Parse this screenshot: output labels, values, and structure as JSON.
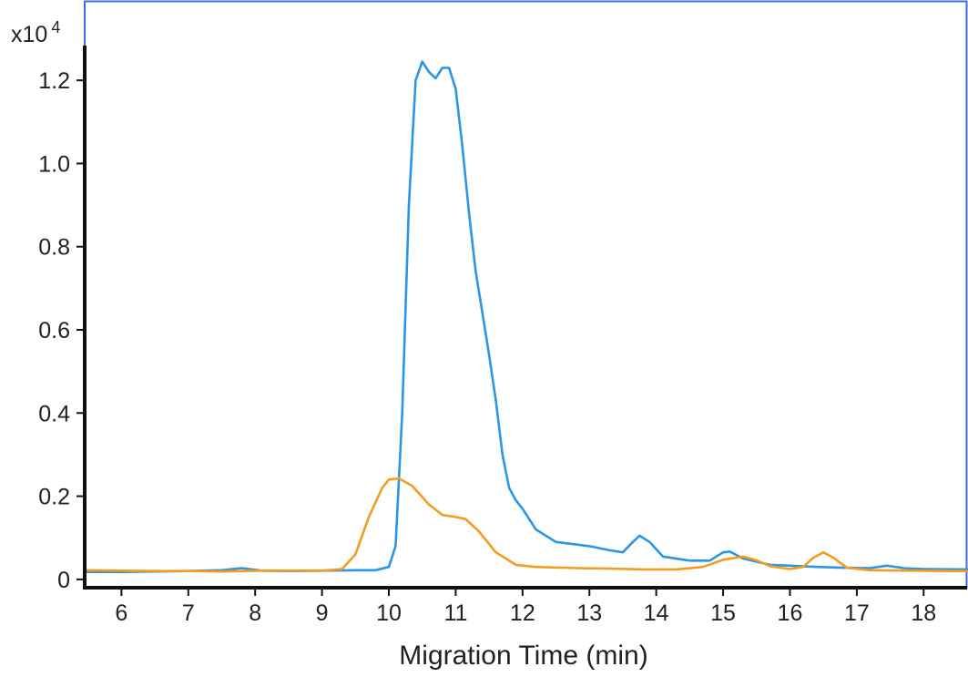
{
  "chart_data": {
    "type": "line",
    "xlabel": "Migration Time (min)",
    "ylabel": "",
    "y_multiplier": {
      "base": "x10",
      "exponent": "4"
    },
    "xlim": [
      5.45,
      18.65
    ],
    "ylim": [
      -0.02,
      1.38
    ],
    "x_ticks": [
      6,
      7,
      8,
      9,
      10,
      11,
      12,
      13,
      14,
      15,
      16,
      17,
      18
    ],
    "y_ticks": [
      {
        "value": 0,
        "label": "0"
      },
      {
        "value": 0.2,
        "label": "0.2"
      },
      {
        "value": 0.4,
        "label": "0.4"
      },
      {
        "value": 0.6,
        "label": "0.6"
      },
      {
        "value": 0.8,
        "label": "0.8"
      },
      {
        "value": 1.0,
        "label": "1.0"
      },
      {
        "value": 1.2,
        "label": "1.2"
      }
    ],
    "grid": false,
    "colors": {
      "frame": "#3a6fd8",
      "axes": "#111111"
    },
    "series": [
      {
        "color": "#2b95e6",
        "points": [
          [
            5.45,
            0.018
          ],
          [
            6.0,
            0.018
          ],
          [
            6.5,
            0.019
          ],
          [
            7.0,
            0.02
          ],
          [
            7.5,
            0.022
          ],
          [
            7.8,
            0.027
          ],
          [
            8.1,
            0.021
          ],
          [
            8.5,
            0.02
          ],
          [
            9.0,
            0.021
          ],
          [
            9.5,
            0.022
          ],
          [
            9.8,
            0.022
          ],
          [
            10.0,
            0.03
          ],
          [
            10.1,
            0.08
          ],
          [
            10.2,
            0.4
          ],
          [
            10.3,
            0.9
          ],
          [
            10.4,
            1.2
          ],
          [
            10.5,
            1.245
          ],
          [
            10.6,
            1.22
          ],
          [
            10.7,
            1.205
          ],
          [
            10.8,
            1.23
          ],
          [
            10.9,
            1.23
          ],
          [
            11.0,
            1.18
          ],
          [
            11.1,
            1.04
          ],
          [
            11.2,
            0.88
          ],
          [
            11.3,
            0.74
          ],
          [
            11.4,
            0.64
          ],
          [
            11.5,
            0.54
          ],
          [
            11.6,
            0.43
          ],
          [
            11.7,
            0.3
          ],
          [
            11.8,
            0.22
          ],
          [
            11.9,
            0.19
          ],
          [
            12.0,
            0.17
          ],
          [
            12.2,
            0.12
          ],
          [
            12.5,
            0.09
          ],
          [
            13.0,
            0.08
          ],
          [
            13.3,
            0.07
          ],
          [
            13.5,
            0.065
          ],
          [
            13.65,
            0.09
          ],
          [
            13.75,
            0.105
          ],
          [
            13.9,
            0.09
          ],
          [
            14.1,
            0.055
          ],
          [
            14.5,
            0.045
          ],
          [
            14.8,
            0.045
          ],
          [
            15.0,
            0.065
          ],
          [
            15.1,
            0.067
          ],
          [
            15.3,
            0.05
          ],
          [
            15.7,
            0.035
          ],
          [
            16.0,
            0.033
          ],
          [
            16.4,
            0.03
          ],
          [
            16.8,
            0.028
          ],
          [
            17.2,
            0.027
          ],
          [
            17.45,
            0.033
          ],
          [
            17.7,
            0.027
          ],
          [
            18.0,
            0.025
          ],
          [
            18.65,
            0.024
          ]
        ]
      },
      {
        "color": "#f29d1f",
        "points": [
          [
            5.45,
            0.022
          ],
          [
            6.0,
            0.021
          ],
          [
            6.5,
            0.02
          ],
          [
            7.0,
            0.02
          ],
          [
            7.5,
            0.019
          ],
          [
            7.8,
            0.02
          ],
          [
            8.1,
            0.021
          ],
          [
            8.5,
            0.021
          ],
          [
            9.0,
            0.021
          ],
          [
            9.3,
            0.025
          ],
          [
            9.5,
            0.06
          ],
          [
            9.7,
            0.15
          ],
          [
            9.9,
            0.22
          ],
          [
            10.0,
            0.24
          ],
          [
            10.15,
            0.243
          ],
          [
            10.35,
            0.225
          ],
          [
            10.6,
            0.18
          ],
          [
            10.8,
            0.155
          ],
          [
            11.0,
            0.15
          ],
          [
            11.15,
            0.145
          ],
          [
            11.35,
            0.115
          ],
          [
            11.6,
            0.065
          ],
          [
            11.9,
            0.035
          ],
          [
            12.2,
            0.03
          ],
          [
            12.8,
            0.027
          ],
          [
            13.3,
            0.026
          ],
          [
            13.8,
            0.024
          ],
          [
            14.3,
            0.024
          ],
          [
            14.7,
            0.03
          ],
          [
            15.0,
            0.047
          ],
          [
            15.3,
            0.055
          ],
          [
            15.5,
            0.046
          ],
          [
            15.7,
            0.032
          ],
          [
            16.0,
            0.025
          ],
          [
            16.2,
            0.03
          ],
          [
            16.35,
            0.052
          ],
          [
            16.5,
            0.065
          ],
          [
            16.65,
            0.052
          ],
          [
            16.85,
            0.028
          ],
          [
            17.2,
            0.022
          ],
          [
            17.8,
            0.021
          ],
          [
            18.65,
            0.02
          ]
        ]
      }
    ]
  }
}
